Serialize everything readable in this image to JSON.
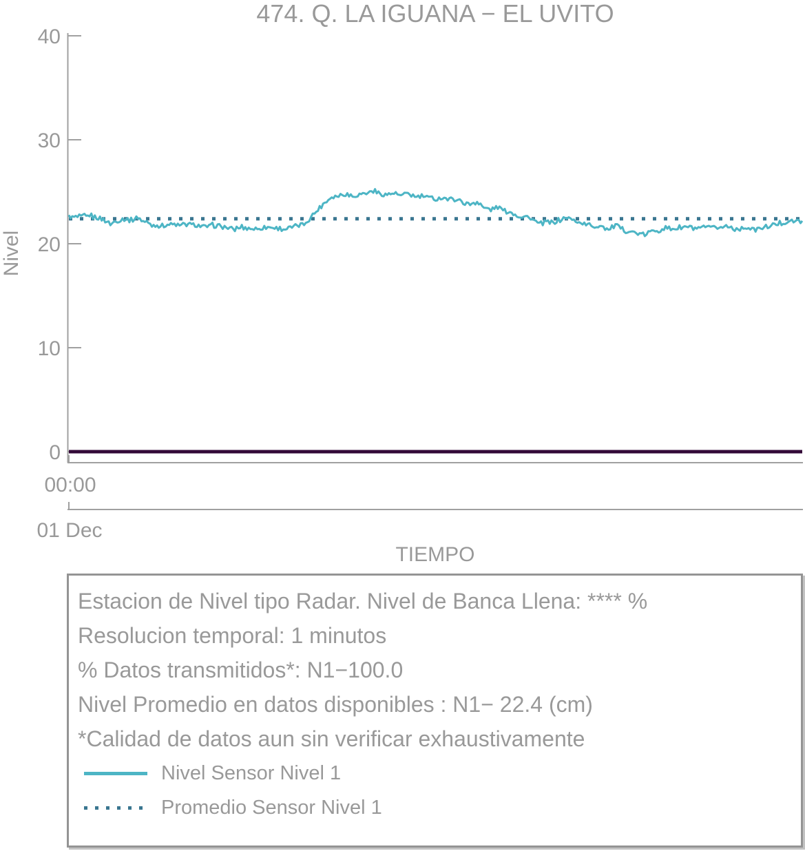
{
  "title": "474. Q. LA IGUANA − EL UVITO",
  "axes": {
    "y_label": "Nivel",
    "x_label": "TIEMPO",
    "y_ticks": [
      "40",
      "30",
      "20",
      "10",
      "0"
    ],
    "x_tick_time": "00:00",
    "x_tick_date": "01 Dec"
  },
  "info_box": {
    "lines": [
      "Estacion de Nivel tipo Radar. Nivel de Banca Llena: **** %",
      "Resolucion temporal: 1 minutos",
      "% Datos transmitidos*: N1−100.0",
      "Nivel Promedio en datos disponibles : N1− 22.4 (cm)",
      "*Calidad de datos aun sin verificar exhaustivamente"
    ],
    "legend": [
      {
        "label": "Nivel Sensor Nivel 1",
        "swatch": "solid-line",
        "color": "#4db5c5"
      },
      {
        "label": "Promedio Sensor Nivel 1",
        "swatch": "dotted-line",
        "color": "#3a7690"
      }
    ]
  },
  "colors": {
    "series_teal": "#4db5c5",
    "mean_dotted_blue": "#3a7690",
    "baseline_purple": "#330a38",
    "axis_gray": "#a0a0a0",
    "text_gray": "#999999"
  },
  "chart_data": {
    "type": "line",
    "title": "474. Q. LA IGUANA − EL UVITO",
    "xlabel": "TIEMPO",
    "ylabel": "Nivel",
    "ylim": [
      0,
      40
    ],
    "yticks": [
      0,
      10,
      20,
      30,
      40
    ],
    "x_start_label": "00:00",
    "x_date_label": "01 Dec",
    "x_span_hours": 24,
    "grid": false,
    "legend_position": "bottom-box",
    "series": [
      {
        "name": "Nivel Sensor Nivel 1",
        "unit": "cm",
        "color": "#4db5c5",
        "values": [
          22.6,
          22.55,
          22.6,
          22.7,
          22.5,
          22.35,
          21.9,
          22.2,
          22.4,
          22.3,
          22.5,
          22.1,
          21.8,
          21.7,
          21.8,
          21.9,
          21.75,
          21.9,
          21.8,
          21.7,
          21.6,
          21.8,
          21.65,
          21.5,
          21.4,
          21.6,
          21.5,
          21.4,
          21.5,
          21.6,
          21.5,
          21.4,
          21.55,
          21.7,
          21.9,
          22.6,
          23.3,
          24.0,
          24.5,
          24.6,
          24.8,
          24.6,
          24.75,
          24.9,
          25.1,
          24.8,
          24.7,
          24.9,
          24.6,
          24.8,
          24.5,
          24.6,
          24.4,
          24.3,
          24.5,
          24.2,
          24.3,
          24.0,
          23.8,
          24.1,
          23.4,
          23.3,
          23.5,
          23.2,
          23.0,
          22.7,
          22.6,
          22.4,
          21.9,
          22.1,
          22.0,
          22.3,
          22.5,
          22.2,
          22.0,
          21.8,
          21.6,
          21.8,
          21.3,
          21.8,
          21.4,
          21.2,
          21.0,
          20.8,
          21.1,
          21.3,
          21.5,
          21.4,
          21.5,
          21.6,
          21.5,
          21.4,
          21.6,
          21.5,
          21.6,
          21.7,
          21.5,
          21.4,
          21.6,
          21.3,
          21.5,
          21.6,
          21.8,
          22.0,
          22.2,
          22.1,
          22.2
        ]
      }
    ],
    "average": {
      "name": "Promedio Sensor Nivel 1",
      "value": 22.4,
      "color": "#3a7690"
    },
    "baseline": {
      "value": 0,
      "color": "#330a38"
    }
  }
}
